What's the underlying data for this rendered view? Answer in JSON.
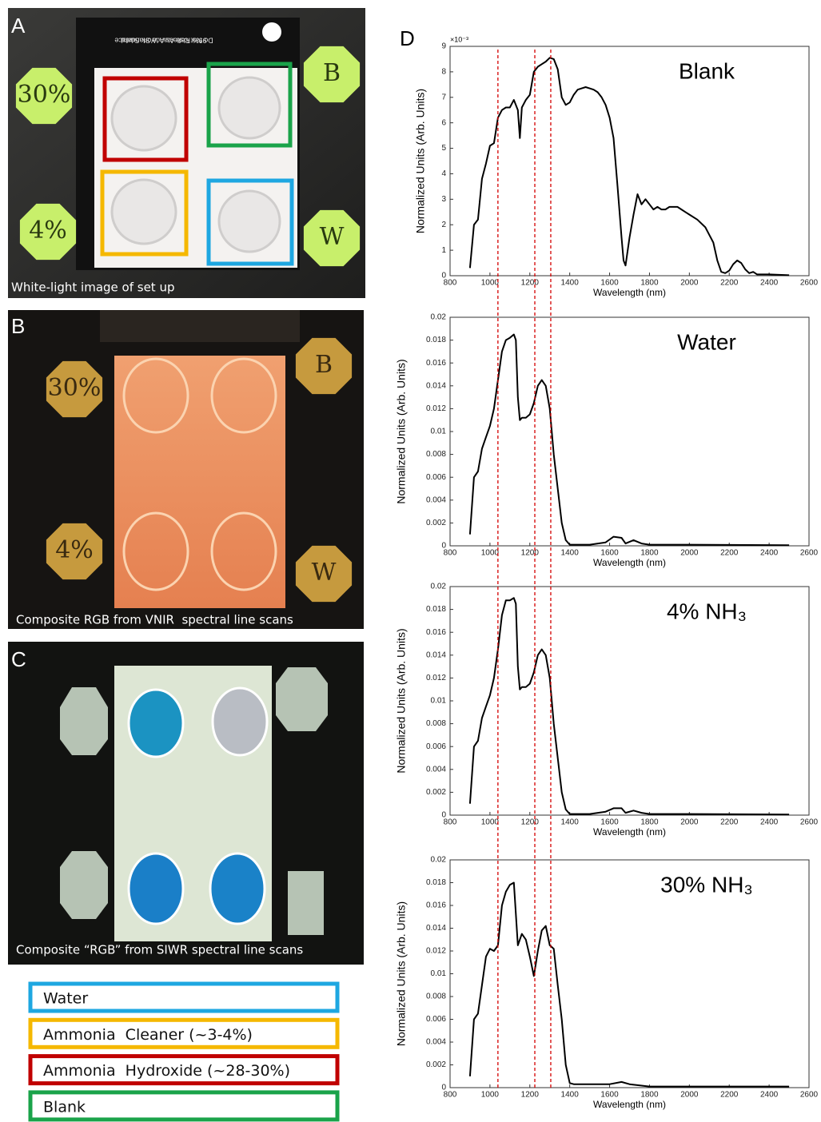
{
  "panels": [
    {
      "label": "A",
      "caption": "White-light image of set up",
      "notes": [
        "30%",
        "B",
        "4%",
        "W"
      ],
      "board_text": [
        "99% Reflectance Standard",
        "Do Not Use As A Work Surface"
      ]
    },
    {
      "label": "B",
      "caption": "Composite RGB from VNIR  spectral line scans",
      "notes": [
        "30%",
        "B",
        "4%",
        "W"
      ]
    },
    {
      "label": "C",
      "caption": "Composite “RGB” from SIWR spectral line scans"
    }
  ],
  "legend": [
    {
      "label": "Water",
      "color": "#1ea7e1"
    },
    {
      "label": "Ammonia  Cleaner (~3-4%)",
      "color": "#f5b800"
    },
    {
      "label": "Ammonia  Hydroxide (~28-30%)",
      "color": "#c00000"
    },
    {
      "label": "Blank",
      "color": "#1aa34a"
    }
  ],
  "chart_panel_label": "D",
  "reference_lines": {
    "values": [
      1040,
      1225,
      1305
    ],
    "color": "#d40000"
  },
  "chart_data": [
    {
      "type": "line",
      "title": "Blank",
      "y_multiplier": "×10⁻³",
      "xlabel": "Wavelength (nm)",
      "ylabel": "Normalized Units (Arb. Units)",
      "color": "#000000",
      "xlim": [
        800,
        2600
      ],
      "xticks": [
        800,
        1000,
        1200,
        1400,
        1600,
        1800,
        2000,
        2200,
        2400,
        2600
      ],
      "ylim": [
        0,
        9
      ],
      "yticks": [
        0,
        1,
        2,
        3,
        4,
        5,
        6,
        7,
        8,
        9
      ],
      "x": [
        900,
        920,
        940,
        960,
        980,
        1000,
        1020,
        1040,
        1060,
        1080,
        1100,
        1120,
        1140,
        1150,
        1160,
        1180,
        1200,
        1220,
        1240,
        1260,
        1280,
        1300,
        1320,
        1340,
        1360,
        1380,
        1400,
        1420,
        1440,
        1460,
        1480,
        1500,
        1520,
        1540,
        1560,
        1580,
        1600,
        1620,
        1640,
        1660,
        1670,
        1680,
        1700,
        1720,
        1740,
        1760,
        1780,
        1800,
        1820,
        1840,
        1860,
        1880,
        1900,
        1920,
        1940,
        1960,
        1980,
        2000,
        2040,
        2080,
        2120,
        2140,
        2160,
        2180,
        2200,
        2220,
        2240,
        2260,
        2280,
        2300,
        2320,
        2340,
        2400,
        2500
      ],
      "values": [
        0.3,
        2.0,
        2.2,
        3.8,
        4.4,
        5.1,
        5.2,
        6.2,
        6.5,
        6.6,
        6.6,
        6.9,
        6.5,
        5.4,
        6.6,
        6.9,
        7.1,
        8.0,
        8.2,
        8.3,
        8.4,
        8.55,
        8.5,
        8.1,
        7.0,
        6.7,
        6.8,
        7.1,
        7.3,
        7.35,
        7.4,
        7.35,
        7.3,
        7.2,
        7.0,
        6.7,
        6.2,
        5.4,
        3.5,
        1.5,
        0.6,
        0.4,
        1.5,
        2.4,
        3.2,
        2.8,
        3.0,
        2.8,
        2.6,
        2.7,
        2.6,
        2.6,
        2.7,
        2.7,
        2.7,
        2.6,
        2.5,
        2.4,
        2.2,
        1.9,
        1.3,
        0.6,
        0.15,
        0.1,
        0.2,
        0.45,
        0.6,
        0.5,
        0.25,
        0.1,
        0.15,
        0.05,
        0.05,
        0.02
      ]
    },
    {
      "type": "line",
      "title": "Water",
      "xlabel": "Wavelength (nm)",
      "ylabel": "Normalized Units (Arb. Units)",
      "color": "#000000",
      "xlim": [
        800,
        2600
      ],
      "xticks": [
        800,
        1000,
        1200,
        1400,
        1600,
        1800,
        2000,
        2200,
        2400,
        2600
      ],
      "ylim": [
        0,
        0.02
      ],
      "yticks": [
        0,
        0.002,
        0.004,
        0.006,
        0.008,
        0.01,
        0.012,
        0.014,
        0.016,
        0.018,
        0.02
      ],
      "x": [
        900,
        920,
        940,
        960,
        980,
        1000,
        1020,
        1040,
        1060,
        1080,
        1100,
        1120,
        1130,
        1140,
        1150,
        1160,
        1180,
        1200,
        1220,
        1240,
        1260,
        1280,
        1300,
        1320,
        1340,
        1360,
        1380,
        1400,
        1500,
        1580,
        1620,
        1660,
        1680,
        1720,
        1760,
        1800,
        2000,
        2500
      ],
      "values": [
        0.001,
        0.006,
        0.0065,
        0.0085,
        0.0095,
        0.0105,
        0.012,
        0.0145,
        0.017,
        0.018,
        0.0182,
        0.0185,
        0.018,
        0.013,
        0.011,
        0.0112,
        0.0112,
        0.0115,
        0.0125,
        0.014,
        0.0145,
        0.014,
        0.012,
        0.008,
        0.005,
        0.002,
        0.0005,
        0.0001,
        0.0001,
        0.0003,
        0.0008,
        0.0007,
        0.0002,
        0.0005,
        0.0002,
        0.0001,
        0.0001,
        5e-05
      ]
    },
    {
      "type": "line",
      "title": "4% NH₃",
      "xlabel": "Wavelength (nm)",
      "ylabel": "Normalized Units (Arb. Units)",
      "color": "#000000",
      "xlim": [
        800,
        2600
      ],
      "xticks": [
        800,
        1000,
        1200,
        1400,
        1600,
        1800,
        2000,
        2200,
        2400,
        2600
      ],
      "ylim": [
        0,
        0.02
      ],
      "yticks": [
        0,
        0.002,
        0.004,
        0.006,
        0.008,
        0.01,
        0.012,
        0.014,
        0.016,
        0.018,
        0.02
      ],
      "x": [
        900,
        920,
        940,
        960,
        980,
        1000,
        1020,
        1040,
        1060,
        1080,
        1100,
        1120,
        1130,
        1140,
        1150,
        1160,
        1180,
        1200,
        1220,
        1240,
        1260,
        1280,
        1300,
        1320,
        1340,
        1360,
        1380,
        1400,
        1500,
        1580,
        1620,
        1660,
        1680,
        1720,
        1760,
        1800,
        2000,
        2500
      ],
      "values": [
        0.001,
        0.006,
        0.0065,
        0.0085,
        0.0095,
        0.0105,
        0.012,
        0.0145,
        0.0175,
        0.0188,
        0.0188,
        0.019,
        0.0185,
        0.013,
        0.011,
        0.0112,
        0.0112,
        0.0115,
        0.0125,
        0.014,
        0.0145,
        0.014,
        0.012,
        0.008,
        0.005,
        0.002,
        0.0005,
        0.0001,
        0.0001,
        0.0003,
        0.0006,
        0.0006,
        0.0002,
        0.0004,
        0.0002,
        0.0001,
        0.0001,
        5e-05
      ]
    },
    {
      "type": "line",
      "title": "30% NH₃",
      "xlabel": "Wavelength (nm)",
      "ylabel": "Normalized Units (Arb. Units)",
      "color": "#000000",
      "xlim": [
        800,
        2600
      ],
      "xticks": [
        800,
        1000,
        1200,
        1400,
        1600,
        1800,
        2000,
        2200,
        2400,
        2600
      ],
      "ylim": [
        0,
        0.02
      ],
      "yticks": [
        0,
        0.002,
        0.004,
        0.006,
        0.008,
        0.01,
        0.012,
        0.014,
        0.016,
        0.018,
        0.02
      ],
      "x": [
        900,
        920,
        940,
        960,
        980,
        1000,
        1020,
        1040,
        1060,
        1080,
        1100,
        1120,
        1140,
        1160,
        1180,
        1200,
        1220,
        1240,
        1260,
        1280,
        1300,
        1320,
        1340,
        1360,
        1380,
        1400,
        1420,
        1500,
        1600,
        1660,
        1700,
        1800,
        2000,
        2500
      ],
      "values": [
        0.001,
        0.006,
        0.0065,
        0.009,
        0.0115,
        0.0122,
        0.012,
        0.0125,
        0.016,
        0.0172,
        0.0178,
        0.018,
        0.0125,
        0.0135,
        0.013,
        0.0115,
        0.0098,
        0.012,
        0.0138,
        0.0142,
        0.0125,
        0.0122,
        0.009,
        0.006,
        0.002,
        0.0004,
        0.0003,
        0.0003,
        0.0003,
        0.0005,
        0.0003,
        0.0001,
        0.0001,
        0.0001
      ]
    }
  ]
}
